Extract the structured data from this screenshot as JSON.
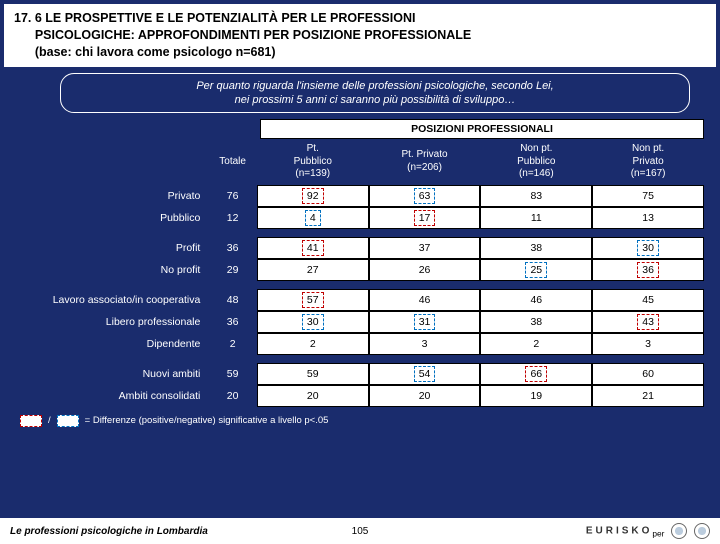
{
  "title_l1": "17. 6 LE PROSPETTIVE E LE POTENZIALITÀ PER LE PROFESSIONI",
  "title_l2": "PSICOLOGICHE: APPROFONDIMENTI PER POSIZIONE PROFESSIONALE",
  "title_l3": "(base: chi lavora come psicologo n=681)",
  "question_l1": "Per quanto riguarda l'insieme delle professioni psicologiche, secondo Lei,",
  "question_l2": "nei prossimi 5 anni ci saranno più possibilità di sviluppo…",
  "header_band": "POSIZIONI PROFESSIONALI",
  "col_totale": "Totale",
  "cols": [
    {
      "l1": "Pt.",
      "l2": "Pubblico",
      "l3": "(n=139)"
    },
    {
      "l1": "Pt. Privato",
      "l2": "(n=206)",
      "l3": ""
    },
    {
      "l1": "Non pt.",
      "l2": "Pubblico",
      "l3": "(n=146)"
    },
    {
      "l1": "Non pt.",
      "l2": "Privato",
      "l3": "(n=167)"
    }
  ],
  "groups": [
    [
      {
        "label": "Privato",
        "tot": "76",
        "vals": [
          "92",
          "63",
          "83",
          "75"
        ],
        "marks": [
          "pos",
          "neg",
          "",
          ""
        ]
      },
      {
        "label": "Pubblico",
        "tot": "12",
        "vals": [
          "4",
          "17",
          "11",
          "13"
        ],
        "marks": [
          "neg",
          "pos",
          "",
          ""
        ]
      }
    ],
    [
      {
        "label": "Profit",
        "tot": "36",
        "vals": [
          "41",
          "37",
          "38",
          "30"
        ],
        "marks": [
          "pos",
          "",
          "",
          "neg"
        ]
      },
      {
        "label": "No profit",
        "tot": "29",
        "vals": [
          "27",
          "26",
          "25",
          "36"
        ],
        "marks": [
          "",
          "",
          "neg",
          "pos"
        ]
      }
    ],
    [
      {
        "label": "Lavoro associato/in cooperativa",
        "tot": "48",
        "vals": [
          "57",
          "46",
          "46",
          "45"
        ],
        "marks": [
          "pos",
          "",
          "",
          ""
        ]
      },
      {
        "label": "Libero professionale",
        "tot": "36",
        "vals": [
          "30",
          "31",
          "38",
          "43"
        ],
        "marks": [
          "neg",
          "neg",
          "",
          "pos"
        ]
      },
      {
        "label": "Dipendente",
        "tot": "2",
        "vals": [
          "2",
          "3",
          "2",
          "3"
        ],
        "marks": [
          "",
          "",
          "",
          ""
        ]
      }
    ],
    [
      {
        "label": "Nuovi ambiti",
        "tot": "59",
        "vals": [
          "59",
          "54",
          "66",
          "60"
        ],
        "marks": [
          "",
          "neg",
          "pos",
          ""
        ]
      },
      {
        "label": "Ambiti consolidati",
        "tot": "20",
        "vals": [
          "20",
          "20",
          "19",
          "21"
        ],
        "marks": [
          "",
          "",
          "",
          ""
        ]
      }
    ]
  ],
  "legend_text": "= Differenze (positive/negative) significative a livello p<.05",
  "footer_left": "Le professioni psicologiche in Lombardia",
  "footer_page": "105",
  "footer_brand": "EURISKO"
}
